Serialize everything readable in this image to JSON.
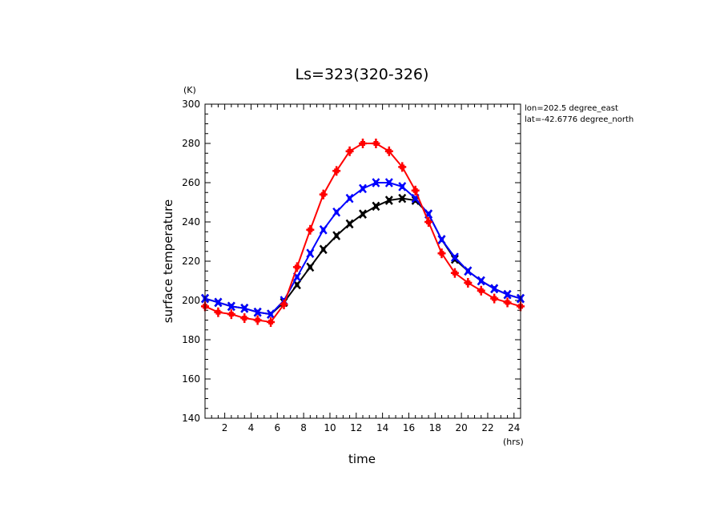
{
  "chart_data": {
    "type": "line",
    "title": "Ls=323(320-326)",
    "xlabel": "time",
    "ylabel": "surface temperature",
    "x_unit": "(hrs)",
    "y_unit": "(K)",
    "xlim": [
      0.5,
      24.5
    ],
    "ylim": [
      140,
      300
    ],
    "x_ticks": [
      2,
      4,
      6,
      8,
      10,
      12,
      14,
      16,
      18,
      20,
      22,
      24
    ],
    "y_ticks": [
      140,
      160,
      180,
      200,
      220,
      240,
      260,
      280,
      300
    ],
    "annotations": [
      "lon=202.5 degree_east",
      "lat=-42.6776 degree_north"
    ],
    "x": [
      0.5,
      1.5,
      2.5,
      3.5,
      4.5,
      5.5,
      6.5,
      7.5,
      8.5,
      9.5,
      10.5,
      11.5,
      12.5,
      13.5,
      14.5,
      15.5,
      16.5,
      17.5,
      18.5,
      19.5,
      20.5,
      21.5,
      22.5,
      23.5,
      24.5
    ],
    "series": [
      {
        "color": "#000000",
        "marker": "x",
        "values": [
          201,
          199,
          197,
          196,
          194,
          193,
          199,
          208,
          217,
          226,
          233,
          239,
          244,
          248,
          251,
          252,
          251,
          244,
          231,
          221,
          215,
          210,
          206,
          203,
          201
        ]
      },
      {
        "color": "#0000ff",
        "marker": "x",
        "values": [
          201,
          199,
          197,
          196,
          194,
          193,
          200,
          212,
          224,
          236,
          245,
          252,
          257,
          260,
          260,
          258,
          252,
          244,
          231,
          222,
          215,
          210,
          206,
          203,
          201
        ]
      },
      {
        "color": "#ff0000",
        "marker": "plus",
        "values": [
          197,
          194,
          193,
          191,
          190,
          189,
          198,
          217,
          236,
          254,
          266,
          276,
          280,
          280,
          276,
          268,
          256,
          240,
          224,
          214,
          209,
          205,
          201,
          199,
          197
        ]
      }
    ]
  }
}
